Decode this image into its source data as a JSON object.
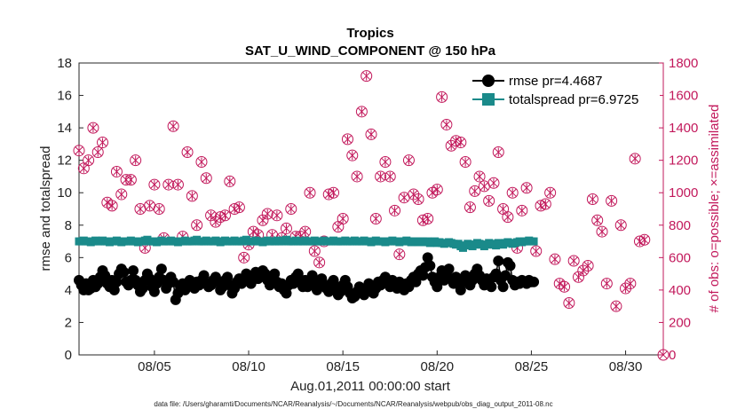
{
  "chart_data": {
    "type": "line",
    "title": "Tropics",
    "subtitle": "SAT_U_WIND_COMPONENT @ 150 hPa",
    "xlabel": "Aug.01,2011 00:00:00 start",
    "ylabel": "rmse and totalspread",
    "y2label": "# of obs: o=possible; ×=assimilated",
    "footnote": "data file: /Users/gharamti/Documents/NCAR/Reanalysis/~/Documents/NCAR/Reanalysis/webpub/obs_diag_output_2011-08.nc",
    "xlim": [
      1.0,
      32.0
    ],
    "ylim": [
      0,
      18
    ],
    "y2lim": [
      0,
      1800
    ],
    "x_ticks": [
      5,
      10,
      15,
      20,
      25,
      30
    ],
    "x_tick_labels": [
      "08/05",
      "08/10",
      "08/15",
      "08/20",
      "08/25",
      "08/30"
    ],
    "y_ticks": [
      "0",
      "2",
      "4",
      "6",
      "8",
      "10",
      "12",
      "14",
      "16",
      "18"
    ],
    "y2_ticks": [
      "0",
      "200",
      "400",
      "600",
      "800",
      "1000",
      "1200",
      "1400",
      "1600",
      "1800"
    ],
    "colors": {
      "rmse": "#000000",
      "spread": "#1a8a8a",
      "obs": "#c2185b"
    },
    "series": [
      {
        "name": "rmse",
        "legend_label": "rmse pr=4.4687",
        "x_start": 1.0,
        "x_step": 0.125,
        "values": [
          4.6,
          4.3,
          4.0,
          4.4,
          4.0,
          4.1,
          4.6,
          4.2,
          4.4,
          4.8,
          5.2,
          4.9,
          4.4,
          4.2,
          4.6,
          4.0,
          4.5,
          5.0,
          5.3,
          5.1,
          4.5,
          4.3,
          4.6,
          5.2,
          4.6,
          4.3,
          3.9,
          4.1,
          4.6,
          5.0,
          4.7,
          4.2,
          3.9,
          4.4,
          4.8,
          5.3,
          4.6,
          4.1,
          4.4,
          4.8,
          4.5,
          3.4,
          3.8,
          4.2,
          4.4,
          4.0,
          4.2,
          4.6,
          4.3,
          4.1,
          4.5,
          4.3,
          4.6,
          4.9,
          4.4,
          4.2,
          4.3,
          4.6,
          4.8,
          4.5,
          4.0,
          4.2,
          4.6,
          4.8,
          4.3,
          3.8,
          4.1,
          4.5,
          4.7,
          4.4,
          4.6,
          5.0,
          4.8,
          4.4,
          4.9,
          5.1,
          4.7,
          5.0,
          5.2,
          5.0,
          4.6,
          4.3,
          4.7,
          5.0,
          4.5,
          4.2,
          4.4,
          4.0,
          3.8,
          4.3,
          4.6,
          4.4,
          4.8,
          5.0,
          4.5,
          4.2,
          4.6,
          4.2,
          4.4,
          4.9,
          4.5,
          4.0,
          4.3,
          4.7,
          4.3,
          4.1,
          3.9,
          4.4,
          4.6,
          4.2,
          3.7,
          3.9,
          4.3,
          4.6,
          4.2,
          3.8,
          3.5,
          3.6,
          3.9,
          4.2,
          3.9,
          3.7,
          4.1,
          4.4,
          4.0,
          3.8,
          4.1,
          4.5,
          4.3,
          4.6,
          4.8,
          4.5,
          4.2,
          4.6,
          4.4,
          4.1,
          4.5,
          4.3,
          4.0,
          4.4,
          4.2,
          4.6,
          4.8,
          4.5,
          5.0,
          5.2,
          4.9,
          5.4,
          6.0,
          5.5,
          4.8,
          4.5,
          4.2,
          4.8,
          5.2,
          4.6,
          4.9,
          5.3,
          4.7,
          4.4,
          4.8,
          4.4,
          4.0,
          4.5,
          4.9,
          4.7,
          4.3,
          4.6,
          5.0,
          5.3,
          4.9,
          4.6,
          4.3,
          4.7,
          4.5,
          4.2,
          4.8,
          5.0,
          5.8,
          4.6,
          4.2,
          4.9,
          5.7,
          5.5,
          4.6,
          4.3,
          4.5,
          4.4,
          4.6,
          4.5,
          4.4,
          4.6,
          4.5,
          4.5
        ]
      },
      {
        "name": "totalspread",
        "legend_label": "totalspread pr=6.9725",
        "x_start": 1.0,
        "x_step": 0.125,
        "values": [
          7.0,
          7.0,
          7.05,
          7.0,
          7.0,
          6.95,
          7.0,
          7.05,
          7.0,
          7.0,
          7.05,
          7.0,
          7.0,
          6.95,
          7.0,
          7.0,
          7.05,
          7.0,
          6.95,
          7.0,
          7.0,
          7.0,
          7.05,
          7.0,
          7.0,
          6.95,
          7.0,
          7.0,
          7.05,
          7.1,
          7.0,
          7.0,
          7.0,
          6.95,
          7.0,
          7.05,
          7.0,
          7.0,
          7.0,
          7.05,
          7.0,
          7.0,
          6.95,
          7.0,
          7.0,
          7.05,
          7.0,
          7.0,
          7.0,
          7.05,
          7.1,
          7.0,
          7.0,
          7.0,
          7.05,
          7.0,
          7.0,
          7.0,
          7.05,
          7.0,
          6.95,
          7.0,
          7.05,
          7.0,
          7.0,
          7.0,
          7.05,
          7.0,
          7.0,
          7.0,
          7.05,
          7.1,
          7.0,
          7.0,
          7.0,
          7.05,
          7.0,
          7.0,
          6.95,
          7.0,
          7.05,
          7.0,
          7.0,
          7.0,
          7.05,
          7.0,
          7.0,
          7.05,
          7.1,
          7.0,
          7.0,
          7.0,
          7.05,
          7.0,
          7.0,
          7.0,
          7.05,
          7.0,
          7.0,
          7.0,
          7.05,
          7.0,
          7.0,
          7.0,
          7.05,
          7.0,
          7.0,
          7.0,
          7.05,
          7.0,
          7.0,
          7.0,
          7.0,
          7.05,
          7.0,
          7.0,
          7.0,
          7.05,
          7.0,
          7.0,
          7.0,
          7.05,
          7.0,
          7.0,
          6.95,
          7.0,
          7.05,
          7.0,
          7.0,
          7.0,
          6.95,
          7.0,
          7.0,
          7.05,
          7.0,
          7.0,
          6.95,
          7.0,
          7.0,
          7.05,
          7.0,
          6.95,
          7.0,
          7.0,
          6.95,
          7.0,
          7.0,
          6.95,
          7.0,
          6.9,
          6.95,
          7.0,
          6.9,
          6.95,
          6.9,
          6.85,
          6.9,
          6.95,
          6.9,
          6.85,
          6.8,
          6.85,
          6.7,
          6.6,
          6.75,
          6.85,
          6.8,
          6.7,
          6.8,
          6.9,
          6.85,
          6.8,
          6.7,
          6.8,
          6.9,
          6.85,
          6.8,
          6.75,
          6.9,
          6.85,
          6.8,
          6.9,
          6.95,
          6.9,
          6.85,
          6.9,
          6.95,
          7.0,
          6.95,
          7.0,
          7.0,
          7.05,
          7.0,
          7.0
        ]
      }
    ],
    "obs_possible": {
      "x_start": 1.0,
      "x_step": 0.25,
      "values": [
        1260,
        1150,
        1200,
        1400,
        1250,
        1310,
        940,
        920,
        1130,
        990,
        1080,
        1080,
        1200,
        900,
        660,
        920,
        1050,
        900,
        720,
        1050,
        1410,
        1050,
        730,
        1250,
        980,
        800,
        1190,
        1090,
        860,
        820,
        850,
        860,
        1070,
        900,
        910,
        600,
        680,
        760,
        740,
        830,
        870,
        740,
        860,
        720,
        780,
        900,
        730,
        730,
        760,
        1000,
        640,
        570,
        700,
        990,
        1000,
        790,
        840,
        1330,
        1230,
        1100,
        1500,
        1720,
        1360,
        840,
        1100,
        1190,
        1100,
        890,
        620,
        970,
        1200,
        990,
        960,
        830,
        840,
        1000,
        1020,
        1590,
        1420,
        1290,
        1320,
        1310,
        1190,
        910,
        1010,
        1100,
        1040,
        950,
        1060,
        1250,
        900,
        850,
        1000,
        660,
        890,
        1030,
        1560,
        640,
        920,
        930,
        1000,
        590,
        440,
        420,
        320,
        580,
        480,
        520,
        550,
        960,
        830,
        760,
        440,
        950,
        300,
        800,
        410,
        440,
        1210,
        700,
        710
      ]
    },
    "obs_assimilated": {
      "x_start": 1.0,
      "x_step": 0.25,
      "values": [
        1260,
        1150,
        1200,
        1400,
        1250,
        1310,
        940,
        920,
        1130,
        990,
        1080,
        1080,
        1200,
        900,
        660,
        920,
        1050,
        900,
        720,
        1050,
        1410,
        1050,
        730,
        1250,
        980,
        800,
        1190,
        1090,
        860,
        820,
        850,
        860,
        1070,
        900,
        910,
        600,
        680,
        760,
        740,
        830,
        870,
        740,
        860,
        720,
        780,
        900,
        730,
        730,
        760,
        1000,
        640,
        570,
        700,
        990,
        1000,
        790,
        840,
        1330,
        1230,
        1100,
        1500,
        1720,
        1360,
        840,
        1100,
        1190,
        1100,
        890,
        620,
        970,
        1200,
        990,
        960,
        830,
        840,
        1000,
        1020,
        1590,
        1420,
        1290,
        1320,
        1310,
        1190,
        910,
        1010,
        1100,
        1040,
        950,
        1060,
        1250,
        900,
        850,
        1000,
        660,
        890,
        1030,
        1560,
        640,
        920,
        930,
        1000,
        590,
        440,
        420,
        320,
        580,
        480,
        520,
        550,
        960,
        830,
        760,
        440,
        950,
        300,
        800,
        410,
        440,
        1210,
        700,
        710
      ]
    },
    "extra_obs_point": {
      "x": 32.0,
      "y": 0
    }
  }
}
